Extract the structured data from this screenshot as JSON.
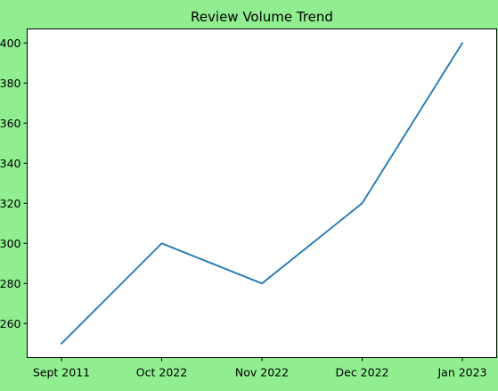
{
  "chart_data": {
    "type": "line",
    "title": "Review Volume Trend",
    "xlabel": "",
    "ylabel": "",
    "categories": [
      "Sept 2011",
      "Oct 2022",
      "Nov 2022",
      "Dec 2022",
      "Jan 2023"
    ],
    "series": [
      {
        "values": [
          250,
          300,
          280,
          320,
          400
        ]
      }
    ],
    "ylim": [
      243,
      407
    ],
    "yticks": [
      260,
      280,
      300,
      320,
      340,
      360,
      380,
      400
    ],
    "grid": false,
    "legend": "none"
  },
  "colors": {
    "background": "#90ee90",
    "plot_area": "#ffffff",
    "line": "#1f77b4",
    "axes": "#000000"
  }
}
